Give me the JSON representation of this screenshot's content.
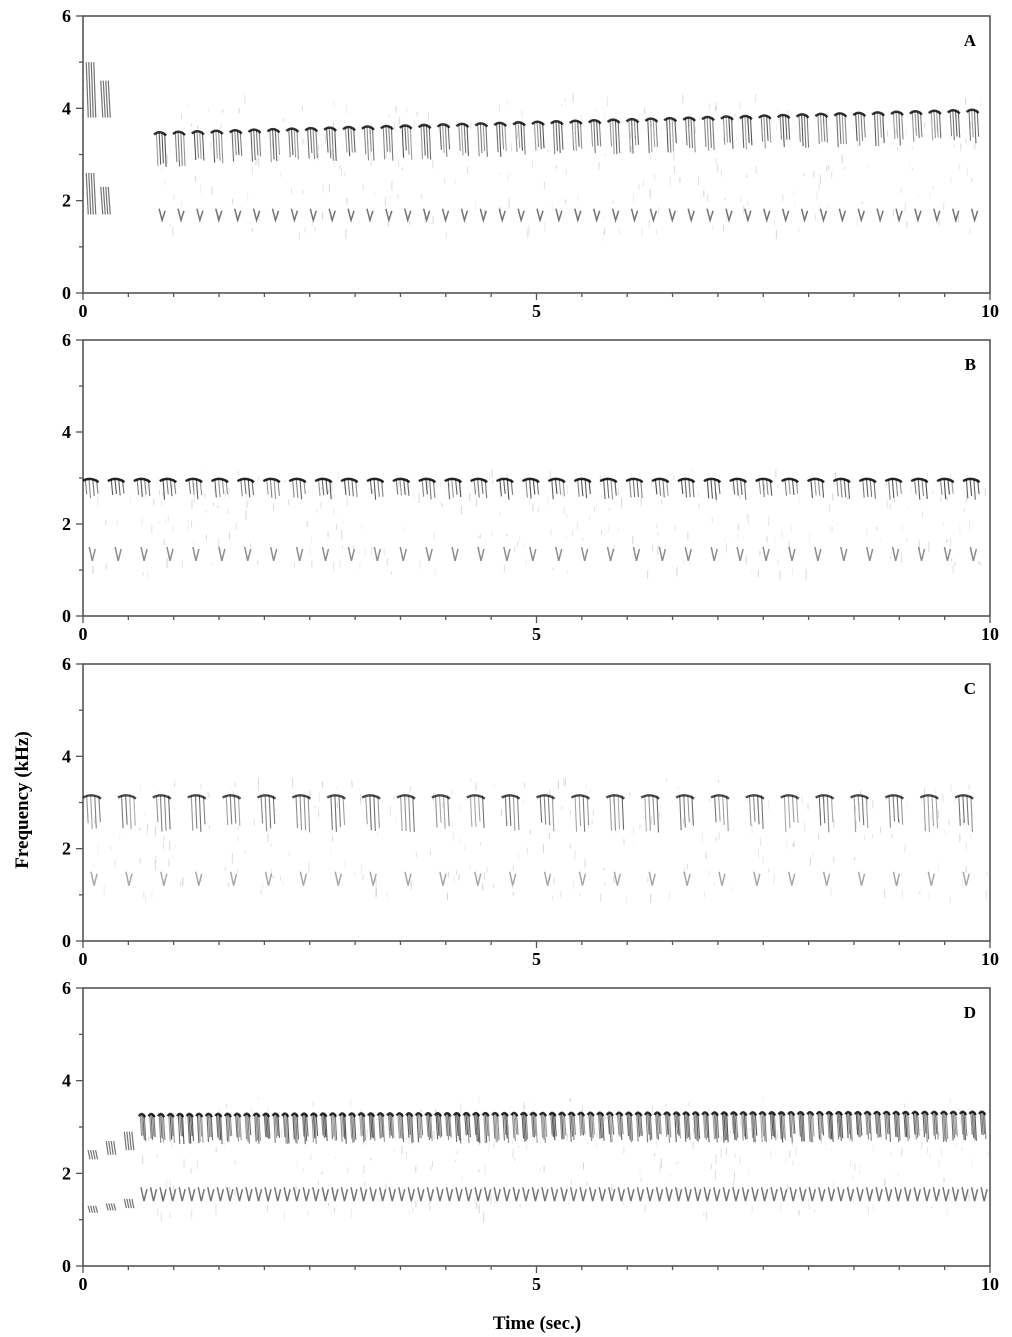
{
  "figure": {
    "ylabel": "Frequency (kHz)",
    "xlabel": "Time (sec.)"
  },
  "chart_data": [
    {
      "type": "heatmap",
      "panel_label": "A",
      "xlim": [
        0,
        10
      ],
      "ylim": [
        0,
        6
      ],
      "x_ticks": [
        0,
        5,
        10
      ],
      "y_ticks": [
        0,
        2,
        4,
        6
      ],
      "x_minor_step": 0.5,
      "y_minor_step": 1,
      "intro_notes": [
        {
          "t": 0.08,
          "f_lo": 3.8,
          "f_hi": 5.0
        },
        {
          "t": 0.24,
          "f_lo": 3.8,
          "f_hi": 4.6
        },
        {
          "t": 0.08,
          "f_lo": 1.7,
          "f_hi": 2.6
        },
        {
          "t": 0.24,
          "f_lo": 1.7,
          "f_hi": 2.3
        }
      ],
      "trill": {
        "t_start": 0.85,
        "t_end": 10.0,
        "rate_per_sec": 4.8,
        "f_start": 3.1,
        "f_end": 3.6,
        "band_height": 0.75,
        "darkness": 0.8
      },
      "harmonic": {
        "t_start": 0.85,
        "t_end": 10.0,
        "f": 1.7,
        "band_height": 0.25,
        "darkness": 0.55
      }
    },
    {
      "type": "heatmap",
      "panel_label": "B",
      "xlim": [
        0,
        10
      ],
      "ylim": [
        0,
        6
      ],
      "x_ticks": [
        0,
        5,
        10
      ],
      "y_ticks": [
        0,
        2,
        4,
        6
      ],
      "x_minor_step": 0.5,
      "y_minor_step": 1,
      "intro_notes": [],
      "trill": {
        "t_start": 0.08,
        "t_end": 10.0,
        "rate_per_sec": 3.5,
        "f_start": 2.75,
        "f_end": 2.75,
        "band_height": 0.45,
        "darkness": 0.85
      },
      "harmonic": {
        "t_start": 0.08,
        "t_end": 10.0,
        "f": 1.35,
        "band_height": 0.3,
        "darkness": 0.45
      }
    },
    {
      "type": "heatmap",
      "panel_label": "C",
      "xlim": [
        0,
        10
      ],
      "ylim": [
        0,
        6
      ],
      "x_ticks": [
        0,
        5,
        10
      ],
      "y_ticks": [
        0,
        2,
        4,
        6
      ],
      "x_minor_step": 0.5,
      "y_minor_step": 1,
      "intro_notes": [],
      "trill": {
        "t_start": 0.1,
        "t_end": 10.0,
        "rate_per_sec": 2.6,
        "f_start": 2.75,
        "f_end": 2.75,
        "band_height": 0.8,
        "darkness": 0.7
      },
      "harmonic": {
        "t_start": 0.1,
        "t_end": 10.0,
        "f": 1.35,
        "band_height": 0.3,
        "darkness": 0.35
      }
    },
    {
      "type": "heatmap",
      "panel_label": "D",
      "xlim": [
        0,
        10
      ],
      "ylim": [
        0,
        6
      ],
      "x_ticks": [
        0,
        5,
        10
      ],
      "y_ticks": [
        0,
        2,
        4,
        6
      ],
      "x_minor_step": 0.5,
      "y_minor_step": 1,
      "intro_notes": [
        {
          "t": 0.1,
          "f_lo": 2.3,
          "f_hi": 2.5
        },
        {
          "t": 0.3,
          "f_lo": 2.4,
          "f_hi": 2.7
        },
        {
          "t": 0.5,
          "f_lo": 2.5,
          "f_hi": 2.9
        },
        {
          "t": 0.1,
          "f_lo": 1.15,
          "f_hi": 1.3
        },
        {
          "t": 0.3,
          "f_lo": 1.2,
          "f_hi": 1.35
        },
        {
          "t": 0.5,
          "f_lo": 1.25,
          "f_hi": 1.45
        }
      ],
      "trill": {
        "t_start": 0.65,
        "t_end": 10.0,
        "rate_per_sec": 9.5,
        "f_start": 2.95,
        "f_end": 3.0,
        "band_height": 0.65,
        "darkness": 0.8
      },
      "harmonic": {
        "t_start": 0.65,
        "t_end": 10.0,
        "f": 1.55,
        "band_height": 0.3,
        "darkness": 0.55
      }
    }
  ]
}
